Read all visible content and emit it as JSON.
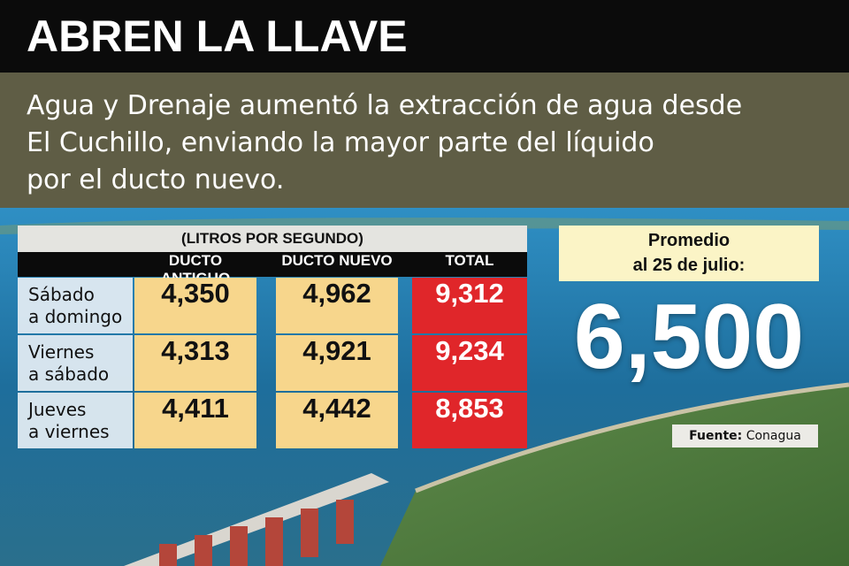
{
  "header": {
    "title": "ABREN LA LLAVE",
    "subtitle_lines": [
      "Agua y Drenaje aumentó la extracción de agua desde",
      "El Cuchillo, enviando la mayor parte del líquido",
      "por el ducto nuevo."
    ]
  },
  "table": {
    "caption": "(LITROS POR SEGUNDO)",
    "columns": [
      "DUCTO ANTIGUO",
      "DUCTO NUEVO",
      "TOTAL"
    ],
    "rows": [
      {
        "label_lines": [
          "Sábado",
          "a domingo"
        ],
        "cells": [
          "4,350",
          "4,962",
          "9,312"
        ]
      },
      {
        "label_lines": [
          "Viernes",
          "a sábado"
        ],
        "cells": [
          "4,313",
          "4,921",
          "9,234"
        ]
      },
      {
        "label_lines": [
          "Jueves",
          "a viernes"
        ],
        "cells": [
          "4,411",
          "4,442",
          "8,853"
        ]
      }
    ]
  },
  "highlight": {
    "label_lines": [
      "Promedio",
      "al 25 de julio:"
    ],
    "value": "6,500"
  },
  "source": {
    "label": "Fuente:",
    "name": "Conagua"
  }
}
